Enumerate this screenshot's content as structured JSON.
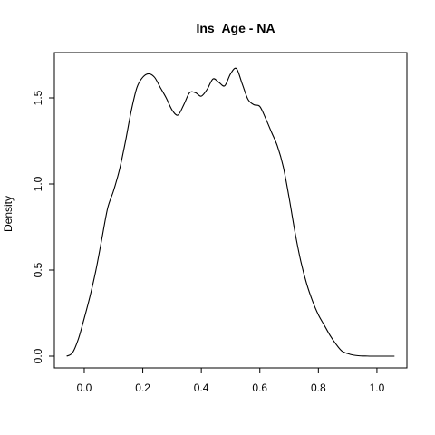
{
  "chart_data": {
    "type": "line",
    "title": "Ins_Age - NA",
    "xlabel": "",
    "ylabel": "Density",
    "xlim": [
      -0.06,
      1.06
    ],
    "ylim": [
      0.0,
      1.7
    ],
    "x_ticks": [
      0.0,
      0.2,
      0.4,
      0.6,
      0.8,
      1.0
    ],
    "x_tick_labels": [
      "0.0",
      "0.2",
      "0.4",
      "0.6",
      "0.8",
      "1.0"
    ],
    "y_ticks": [
      0.0,
      0.5,
      1.0,
      1.5
    ],
    "y_tick_labels": [
      "0.0",
      "0.5",
      "1.0",
      "1.5"
    ],
    "grid": false,
    "line_color": "#000000",
    "series": [
      {
        "x": [
          -0.06,
          -0.04,
          -0.02,
          0.0,
          0.02,
          0.04,
          0.06,
          0.08,
          0.1,
          0.12,
          0.14,
          0.16,
          0.18,
          0.2,
          0.22,
          0.24,
          0.26,
          0.28,
          0.3,
          0.32,
          0.34,
          0.36,
          0.38,
          0.4,
          0.42,
          0.44,
          0.46,
          0.48,
          0.5,
          0.52,
          0.54,
          0.56,
          0.58,
          0.6,
          0.62,
          0.64,
          0.66,
          0.68,
          0.7,
          0.72,
          0.74,
          0.76,
          0.78,
          0.8,
          0.82,
          0.84,
          0.86,
          0.88,
          0.9,
          0.92,
          0.94,
          0.96,
          0.98,
          1.0,
          1.02,
          1.04,
          1.06
        ],
        "y": [
          0.0,
          0.02,
          0.1,
          0.22,
          0.35,
          0.5,
          0.68,
          0.86,
          0.96,
          1.08,
          1.24,
          1.42,
          1.56,
          1.62,
          1.64,
          1.62,
          1.56,
          1.5,
          1.43,
          1.4,
          1.46,
          1.53,
          1.53,
          1.51,
          1.55,
          1.61,
          1.59,
          1.57,
          1.64,
          1.67,
          1.58,
          1.49,
          1.46,
          1.45,
          1.38,
          1.3,
          1.22,
          1.1,
          0.92,
          0.72,
          0.55,
          0.42,
          0.32,
          0.24,
          0.18,
          0.12,
          0.07,
          0.03,
          0.015,
          0.006,
          0.002,
          0.001,
          0.0,
          0.0,
          0.0,
          0.0,
          0.0
        ]
      }
    ]
  }
}
